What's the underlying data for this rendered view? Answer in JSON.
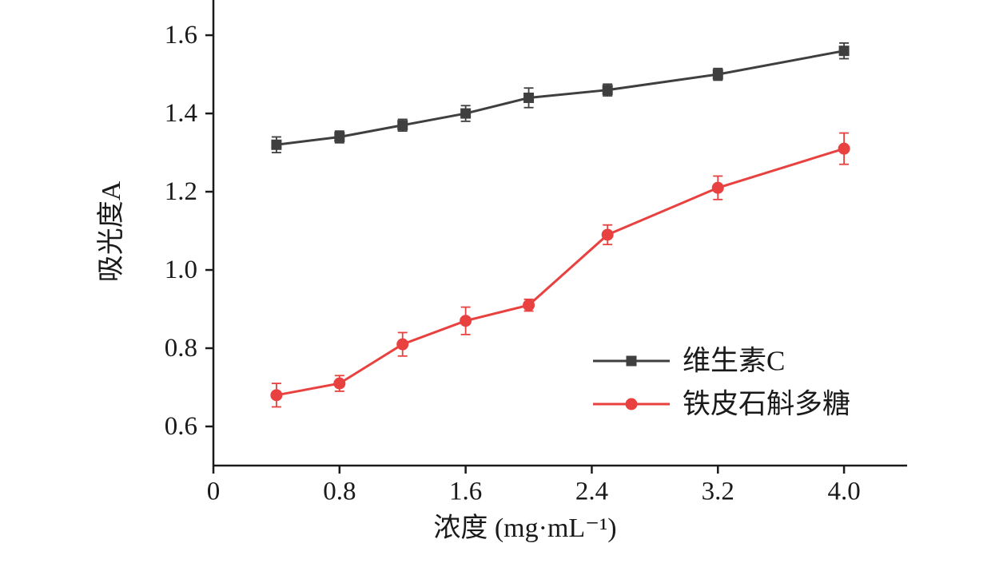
{
  "chart_data": {
    "type": "line",
    "title": "",
    "xlabel": "浓度 (mg·mL⁻¹)",
    "ylabel": "吸光度A",
    "x": [
      0.4,
      0.8,
      1.2,
      1.6,
      2.0,
      2.5,
      3.2,
      4.0
    ],
    "series": [
      {
        "name": "维生素C",
        "color": "#3f3f3f",
        "marker": "square",
        "values": [
          1.32,
          1.34,
          1.37,
          1.4,
          1.44,
          1.46,
          1.5,
          1.56
        ],
        "errors": [
          0.02,
          0.015,
          0.015,
          0.02,
          0.025,
          0.015,
          0.015,
          0.02
        ]
      },
      {
        "name": "铁皮石斛多糖",
        "color": "#e8413f",
        "marker": "circle",
        "values": [
          0.68,
          0.71,
          0.81,
          0.87,
          0.91,
          1.09,
          1.21,
          1.31
        ],
        "errors": [
          0.03,
          0.02,
          0.03,
          0.035,
          0.015,
          0.025,
          0.03,
          0.04
        ]
      }
    ],
    "x_ticks": [
      0,
      0.8,
      1.6,
      2.4,
      3.2,
      4.0
    ],
    "x_tick_labels": [
      "0",
      "0.8",
      "1.6",
      "2.4",
      "3.2",
      "4.0"
    ],
    "y_ticks": [
      0.6,
      0.8,
      1.0,
      1.2,
      1.4,
      1.6
    ],
    "y_tick_labels": [
      "0.6",
      "0.8",
      "1.0",
      "1.2",
      "1.4",
      "1.6"
    ],
    "xlim": [
      0,
      4.4
    ],
    "ylim": [
      0.5,
      1.69
    ],
    "grid": false,
    "legend_position": "inside-right-lower",
    "axis_color": "#1a1a1a",
    "background": "#ffffff"
  }
}
